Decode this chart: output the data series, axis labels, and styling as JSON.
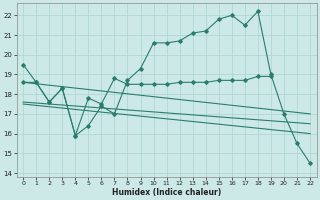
{
  "xlabel": "Humidex (Indice chaleur)",
  "xlim": [
    -0.5,
    22.5
  ],
  "ylim": [
    13.8,
    22.6
  ],
  "yticks": [
    14,
    15,
    16,
    17,
    18,
    19,
    20,
    21,
    22
  ],
  "xticks": [
    0,
    1,
    2,
    3,
    4,
    5,
    6,
    7,
    8,
    9,
    10,
    11,
    12,
    13,
    14,
    15,
    16,
    17,
    18,
    19,
    20,
    21,
    22
  ],
  "line_color": "#2a7d6e",
  "bg_color": "#cce9e7",
  "grid_color": "#aad4d0",
  "line1_x": [
    0,
    1,
    2,
    3,
    4,
    5,
    6,
    7,
    8,
    9,
    10,
    11,
    12,
    13,
    14,
    15,
    16,
    17,
    18,
    19,
    20,
    21,
    22
  ],
  "line1_y": [
    19.5,
    18.6,
    17.6,
    18.3,
    15.9,
    16.4,
    17.4,
    17.0,
    18.7,
    19.3,
    20.6,
    20.6,
    20.7,
    21.1,
    21.2,
    21.8,
    22.0,
    21.5,
    22.2,
    19.0,
    17.0,
    15.5,
    14.5
  ],
  "line2_x": [
    0,
    1,
    2,
    3,
    4,
    5,
    6,
    7,
    8,
    9,
    10,
    11,
    12,
    13,
    14,
    15,
    16,
    17,
    18,
    19
  ],
  "line2_y": [
    18.6,
    18.6,
    17.6,
    18.3,
    15.9,
    17.8,
    17.5,
    18.8,
    18.5,
    18.5,
    18.5,
    18.5,
    18.6,
    18.6,
    18.6,
    18.7,
    18.7,
    18.7,
    18.9,
    18.9
  ],
  "line3_x": [
    0,
    22
  ],
  "line3_y": [
    18.6,
    17.0
  ],
  "line4_x": [
    0,
    22
  ],
  "line4_y": [
    17.6,
    16.5
  ],
  "line5_x": [
    0,
    22
  ],
  "line5_y": [
    17.5,
    16.0
  ]
}
